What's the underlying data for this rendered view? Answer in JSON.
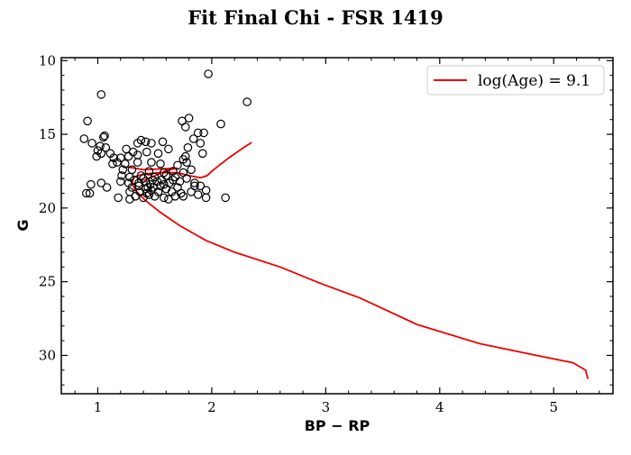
{
  "chart_data": {
    "type": "scatter",
    "title": "Fit Final Chi - FSR 1419",
    "xlabel": "BP − RP",
    "ylabel": "G",
    "xlim": [
      0.68,
      5.52
    ],
    "ylim": [
      32.6,
      9.8
    ],
    "y_inverted": true,
    "grid": false,
    "legend_position": "top-right",
    "xticks": [
      1,
      2,
      3,
      4,
      5
    ],
    "yticks": [
      10,
      15,
      20,
      25,
      30
    ],
    "colors": {
      "isochrone": "#ee0000",
      "points": "#000000"
    },
    "series": [
      {
        "name": "log(Age) = 9.1",
        "kind": "line",
        "points": [
          [
            5.3,
            31.6
          ],
          [
            5.28,
            31.0
          ],
          [
            5.17,
            30.5
          ],
          [
            4.85,
            30.0
          ],
          [
            4.35,
            29.2
          ],
          [
            3.8,
            27.9
          ],
          [
            3.3,
            26.1
          ],
          [
            2.95,
            25.1
          ],
          [
            2.6,
            24.0
          ],
          [
            2.2,
            23.0
          ],
          [
            1.95,
            22.2
          ],
          [
            1.72,
            21.2
          ],
          [
            1.55,
            20.3
          ],
          [
            1.42,
            19.5
          ],
          [
            1.33,
            18.8
          ],
          [
            1.3,
            18.3
          ],
          [
            1.32,
            17.9
          ],
          [
            1.4,
            17.7
          ],
          [
            1.55,
            17.6
          ],
          [
            1.7,
            17.6
          ],
          [
            1.8,
            17.8
          ],
          [
            1.9,
            17.95
          ],
          [
            1.96,
            17.8
          ],
          [
            2.0,
            17.5
          ],
          [
            2.05,
            17.2
          ],
          [
            2.15,
            16.6
          ],
          [
            2.28,
            15.9
          ],
          [
            2.35,
            15.55
          ]
        ]
      },
      {
        "kind": "line",
        "points": [
          [
            1.4,
            18.15
          ],
          [
            1.52,
            17.75
          ],
          [
            1.6,
            17.45
          ],
          [
            1.7,
            17.3
          ],
          [
            1.55,
            17.35
          ],
          [
            1.4,
            17.4
          ],
          [
            1.25,
            17.2
          ]
        ]
      },
      {
        "kind": "scatter",
        "points": [
          [
            1.97,
            10.9
          ],
          [
            1.03,
            12.3
          ],
          [
            2.31,
            12.8
          ],
          [
            0.91,
            14.1
          ],
          [
            1.74,
            14.1
          ],
          [
            1.8,
            13.9
          ],
          [
            2.08,
            14.3
          ],
          [
            1.77,
            14.5
          ],
          [
            1.06,
            15.1
          ],
          [
            1.05,
            15.2
          ],
          [
            0.88,
            15.3
          ],
          [
            0.95,
            15.6
          ],
          [
            1.88,
            14.9
          ],
          [
            1.93,
            14.9
          ],
          [
            1.84,
            15.3
          ],
          [
            1.57,
            15.5
          ],
          [
            1.9,
            15.6
          ],
          [
            1.38,
            15.4
          ],
          [
            1.42,
            15.5
          ],
          [
            1.35,
            15.6
          ],
          [
            1.47,
            15.6
          ],
          [
            1.02,
            15.8
          ],
          [
            1.07,
            15.9
          ],
          [
            1.79,
            15.9
          ],
          [
            1.62,
            16.0
          ],
          [
            1.92,
            16.3
          ],
          [
            1.0,
            16.1
          ],
          [
            1.03,
            16.3
          ],
          [
            1.11,
            16.3
          ],
          [
            0.99,
            16.5
          ],
          [
            1.14,
            16.6
          ],
          [
            1.2,
            16.6
          ],
          [
            1.27,
            16.5
          ],
          [
            1.35,
            16.4
          ],
          [
            1.25,
            16.0
          ],
          [
            1.31,
            16.2
          ],
          [
            1.43,
            16.2
          ],
          [
            1.53,
            16.3
          ],
          [
            1.77,
            16.5
          ],
          [
            1.75,
            16.7
          ],
          [
            1.17,
            16.9
          ],
          [
            1.13,
            17.0
          ],
          [
            1.24,
            17.0
          ],
          [
            1.35,
            16.9
          ],
          [
            1.47,
            16.9
          ],
          [
            1.55,
            17.0
          ],
          [
            1.7,
            17.1
          ],
          [
            1.78,
            16.9
          ],
          [
            1.22,
            17.4
          ],
          [
            1.3,
            17.4
          ],
          [
            1.45,
            17.5
          ],
          [
            1.58,
            17.6
          ],
          [
            1.66,
            17.5
          ],
          [
            1.75,
            17.6
          ],
          [
            1.82,
            17.4
          ],
          [
            1.21,
            17.8
          ],
          [
            1.28,
            17.9
          ],
          [
            1.38,
            17.8
          ],
          [
            1.5,
            17.9
          ],
          [
            1.6,
            17.8
          ],
          [
            1.68,
            17.9
          ],
          [
            1.78,
            18.0
          ],
          [
            1.2,
            18.2
          ],
          [
            1.27,
            18.3
          ],
          [
            1.32,
            18.1
          ],
          [
            1.42,
            18.2
          ],
          [
            1.52,
            18.2
          ],
          [
            1.63,
            18.3
          ],
          [
            1.72,
            18.2
          ],
          [
            1.85,
            18.3
          ],
          [
            1.3,
            18.6
          ],
          [
            1.36,
            18.5
          ],
          [
            1.44,
            18.6
          ],
          [
            1.55,
            18.5
          ],
          [
            1.6,
            18.7
          ],
          [
            1.7,
            18.6
          ],
          [
            1.85,
            18.5
          ],
          [
            1.9,
            18.5
          ],
          [
            0.94,
            18.4
          ],
          [
            1.03,
            18.3
          ],
          [
            1.08,
            18.6
          ],
          [
            1.28,
            18.9
          ],
          [
            1.37,
            18.9
          ],
          [
            1.47,
            18.8
          ],
          [
            1.53,
            18.9
          ],
          [
            1.65,
            18.9
          ],
          [
            1.73,
            19.0
          ],
          [
            1.82,
            18.9
          ],
          [
            1.95,
            18.8
          ],
          [
            0.9,
            19.0
          ],
          [
            0.93,
            19.0
          ],
          [
            1.18,
            19.3
          ],
          [
            1.28,
            19.4
          ],
          [
            1.33,
            19.2
          ],
          [
            1.4,
            19.3
          ],
          [
            1.45,
            19.1
          ],
          [
            1.5,
            19.2
          ],
          [
            1.58,
            19.3
          ],
          [
            1.62,
            19.4
          ],
          [
            1.68,
            19.2
          ],
          [
            1.75,
            19.2
          ],
          [
            1.88,
            19.1
          ],
          [
            1.95,
            19.3
          ],
          [
            2.12,
            19.3
          ],
          [
            1.4,
            18.0
          ],
          [
            1.46,
            18.4
          ],
          [
            1.48,
            18.1
          ],
          [
            1.56,
            18.1
          ],
          [
            1.42,
            18.7
          ],
          [
            1.36,
            18.3
          ],
          [
            1.58,
            18.4
          ],
          [
            1.66,
            18.1
          ],
          [
            1.49,
            18.6
          ],
          [
            1.43,
            19.0
          ]
        ]
      }
    ]
  }
}
